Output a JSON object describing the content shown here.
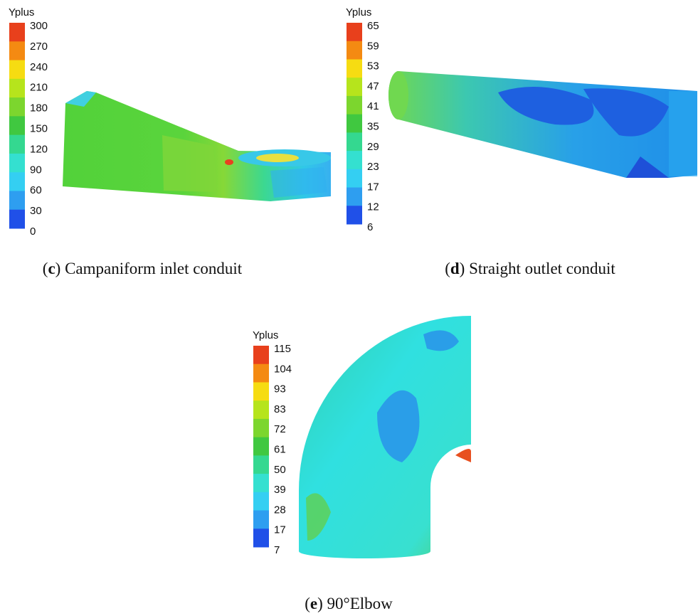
{
  "panels": [
    {
      "legend_title": "Yplus",
      "ticks": [
        300,
        270,
        240,
        210,
        180,
        150,
        120,
        90,
        60,
        30,
        0
      ],
      "caption": {
        "open": "(",
        "letter": "c",
        "text": ") Campaniform inlet conduit"
      }
    },
    {
      "legend_title": "Yplus",
      "ticks": [
        65,
        59,
        53,
        47,
        41,
        35,
        29,
        23,
        17,
        12,
        6
      ],
      "caption": {
        "open": "(",
        "letter": "d",
        "text": ") Straight outlet conduit"
      }
    },
    {
      "legend_title": "Yplus",
      "ticks": [
        115,
        104,
        93,
        83,
        72,
        61,
        50,
        39,
        28,
        17,
        7
      ],
      "caption": {
        "open": "(",
        "letter": "e",
        "text": ") 90°Elbow"
      }
    }
  ]
}
